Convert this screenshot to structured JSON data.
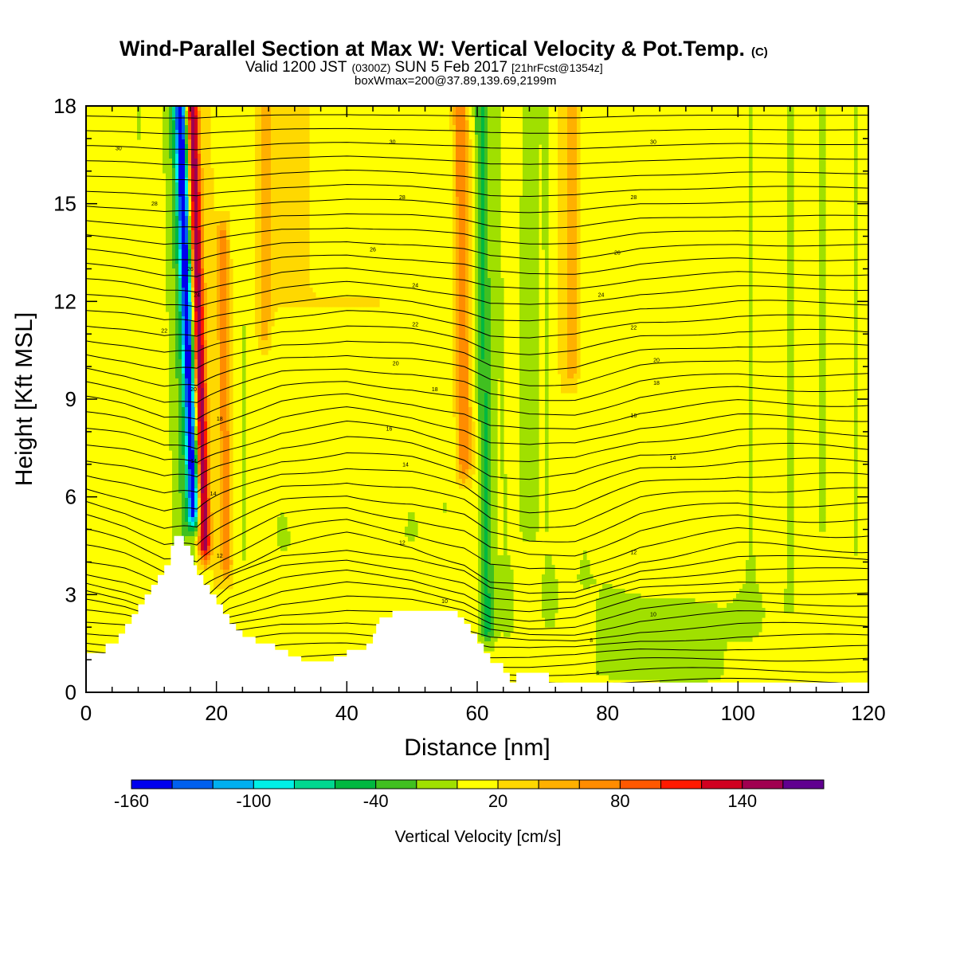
{
  "title": {
    "main": "Wind-Parallel Section at Max W: Vertical Velocity & Pot.Temp.",
    "main_suffix": "(C)",
    "valid_a": "Valid 1200 JST",
    "valid_b": "(0300Z)",
    "valid_c": "SUN 5 Feb 2017",
    "valid_d": "[21hrFcst@1354z]",
    "box": "boxWmax=200@37.89,139.69,2199m"
  },
  "colors": {
    "background": "#ffffff",
    "terrain": "#ffffff",
    "contour": "#000000",
    "palette": [
      "#0000ee",
      "#0060ee",
      "#00b0f0",
      "#00f0e6",
      "#00d890",
      "#00b840",
      "#40c020",
      "#a0e000",
      "#ffff00",
      "#ffd800",
      "#ffb000",
      "#ff8c00",
      "#ff5800",
      "#ff1a00",
      "#d00020",
      "#a00050",
      "#600090"
    ]
  },
  "chart_data": {
    "type": "heatmap",
    "xlabel": "Distance [nm]",
    "ylabel": "Height [Kft MSL]",
    "xlim": [
      0,
      120
    ],
    "ylim": [
      0,
      18
    ],
    "xticks": [
      0,
      20,
      40,
      60,
      80,
      100,
      120
    ],
    "yticks": [
      0,
      3,
      6,
      9,
      12,
      15,
      18
    ],
    "background_w": 20,
    "colorbar": {
      "title": "Vertical Velocity [cm/s]",
      "min": -160,
      "max": 180,
      "step": 20,
      "tick_labels": [
        -160,
        -100,
        -40,
        20,
        80,
        140
      ]
    },
    "w_features": [
      {
        "x": 16.5,
        "y_bottom": 5.5,
        "y_top": 18,
        "tilt": -3.0,
        "amp": -160,
        "width": 0.9
      },
      {
        "x": 18.2,
        "y_bottom": 4.5,
        "y_top": 18,
        "tilt": -2.5,
        "amp": 140,
        "width": 0.9
      },
      {
        "x": 15.0,
        "y_bottom": 4.0,
        "y_top": 18,
        "tilt": -2.0,
        "amp": -40,
        "width": 2.0
      },
      {
        "x": 21.5,
        "y_bottom": 4.0,
        "y_top": 14,
        "tilt": -1.0,
        "amp": 60,
        "width": 0.8
      },
      {
        "x": 24.0,
        "y_bottom": 4.0,
        "y_top": 18,
        "tilt": 0.0,
        "amp": -20,
        "width": 1.5
      },
      {
        "x": 27.5,
        "y_bottom": 11.0,
        "y_top": 18,
        "tilt": 0.0,
        "amp": 40,
        "width": 1.0
      },
      {
        "x": 8.0,
        "y_bottom": 2.0,
        "y_top": 18,
        "tilt": 0.0,
        "amp": -20,
        "width": 2.0
      },
      {
        "x": 30.0,
        "y_bottom": 4.5,
        "y_top": 11.0,
        "tilt": 0.0,
        "amp": -20,
        "width": 3.0
      },
      {
        "x": 42.0,
        "y_bottom": 3.0,
        "y_top": 4.8,
        "tilt": 0.0,
        "amp": -20,
        "width": 8.0
      },
      {
        "x": 46.0,
        "y_bottom": 13.0,
        "y_top": 18,
        "tilt": 0.0,
        "amp": -20,
        "width": 2.0
      },
      {
        "x": 50.0,
        "y_bottom": 5.0,
        "y_top": 9.0,
        "tilt": 0.0,
        "amp": -20,
        "width": 1.5
      },
      {
        "x": 55.0,
        "y_bottom": 5.5,
        "y_top": 18,
        "tilt": -1.0,
        "amp": -20,
        "width": 1.6
      },
      {
        "x": 58.0,
        "y_bottom": 7.0,
        "y_top": 18,
        "tilt": -1.0,
        "amp": 60,
        "width": 1.0
      },
      {
        "x": 61.5,
        "y_bottom": 1.8,
        "y_top": 18,
        "tilt": -1.0,
        "amp": -60,
        "width": 1.2
      },
      {
        "x": 64.5,
        "y_bottom": 2.0,
        "y_top": 18,
        "tilt": -1.5,
        "amp": -20,
        "width": 1.8
      },
      {
        "x": 68.0,
        "y_bottom": 5.0,
        "y_top": 18,
        "tilt": 0.0,
        "amp": -40,
        "width": 1.5
      },
      {
        "x": 71.0,
        "y_bottom": 2.5,
        "y_top": 18,
        "tilt": -0.5,
        "amp": -20,
        "width": 1.0
      },
      {
        "x": 74.5,
        "y_bottom": 10.0,
        "y_top": 18,
        "tilt": 0.0,
        "amp": 40,
        "width": 1.0
      },
      {
        "x": 76.5,
        "y_bottom": 4.0,
        "y_top": 18,
        "tilt": 0.0,
        "amp": -20,
        "width": 1.0
      },
      {
        "x": 80.0,
        "y_bottom": 0.5,
        "y_top": 3.5,
        "tilt": 0.0,
        "amp": -20,
        "width": 14.0
      },
      {
        "x": 94.0,
        "y_bottom": 0.5,
        "y_top": 2.5,
        "tilt": 0.0,
        "amp": -20,
        "width": 8.0
      },
      {
        "x": 84.0,
        "y_bottom": 6.0,
        "y_top": 18,
        "tilt": 0.0,
        "amp": -20,
        "width": 1.0
      },
      {
        "x": 94.0,
        "y_bottom": 10.0,
        "y_top": 18,
        "tilt": 0.0,
        "amp": -20,
        "width": 2.0
      },
      {
        "x": 102.0,
        "y_bottom": 2.0,
        "y_top": 18,
        "tilt": 0.0,
        "amp": -20,
        "width": 3.0
      },
      {
        "x": 108.0,
        "y_bottom": 2.5,
        "y_top": 18,
        "tilt": 0.0,
        "amp": -20,
        "width": 2.5
      },
      {
        "x": 113.0,
        "y_bottom": 5.0,
        "y_top": 18,
        "tilt": 0.0,
        "amp": -20,
        "width": 2.5
      },
      {
        "x": 118.0,
        "y_bottom": 0.5,
        "y_top": 18,
        "tilt": 0.0,
        "amp": -20,
        "width": 1.5
      }
    ],
    "terrain": [
      [
        0,
        1.2
      ],
      [
        3,
        1.2
      ],
      [
        3,
        1.5
      ],
      [
        5,
        1.5
      ],
      [
        5,
        1.8
      ],
      [
        6,
        1.8
      ],
      [
        6,
        2.1
      ],
      [
        7,
        2.1
      ],
      [
        7,
        2.4
      ],
      [
        8,
        2.4
      ],
      [
        8,
        2.7
      ],
      [
        9,
        2.7
      ],
      [
        9,
        3.0
      ],
      [
        10,
        3.0
      ],
      [
        10,
        3.3
      ],
      [
        11,
        3.3
      ],
      [
        11,
        3.6
      ],
      [
        12,
        3.6
      ],
      [
        12,
        3.9
      ],
      [
        13,
        3.9
      ],
      [
        13,
        4.5
      ],
      [
        13.5,
        4.5
      ],
      [
        13.5,
        4.8
      ],
      [
        15,
        4.8
      ],
      [
        15,
        4.5
      ],
      [
        16,
        4.5
      ],
      [
        16,
        4.2
      ],
      [
        16.5,
        4.2
      ],
      [
        16.5,
        3.9
      ],
      [
        17,
        3.9
      ],
      [
        17,
        3.6
      ],
      [
        18,
        3.6
      ],
      [
        18,
        3.3
      ],
      [
        19,
        3.3
      ],
      [
        19,
        3.0
      ],
      [
        20,
        3.0
      ],
      [
        20,
        2.7
      ],
      [
        21,
        2.7
      ],
      [
        21,
        2.4
      ],
      [
        22,
        2.4
      ],
      [
        22,
        2.1
      ],
      [
        23,
        2.1
      ],
      [
        23,
        1.9
      ],
      [
        24,
        1.9
      ],
      [
        24,
        1.7
      ],
      [
        26,
        1.7
      ],
      [
        26,
        1.5
      ],
      [
        29,
        1.5
      ],
      [
        29,
        1.3
      ],
      [
        31,
        1.3
      ],
      [
        31,
        1.1
      ],
      [
        33,
        1.1
      ],
      [
        33,
        0.95
      ],
      [
        36,
        0.95
      ],
      [
        36,
        0.95
      ],
      [
        38,
        0.95
      ],
      [
        38,
        1.1
      ],
      [
        40,
        1.1
      ],
      [
        40,
        1.3
      ],
      [
        43,
        1.3
      ],
      [
        43,
        1.5
      ],
      [
        44,
        1.5
      ],
      [
        44,
        1.8
      ],
      [
        44.5,
        1.8
      ],
      [
        44.5,
        2.1
      ],
      [
        45,
        2.1
      ],
      [
        45,
        2.3
      ],
      [
        47,
        2.3
      ],
      [
        47,
        2.5
      ],
      [
        57,
        2.5
      ],
      [
        57,
        2.3
      ],
      [
        58,
        2.3
      ],
      [
        58,
        2.1
      ],
      [
        59,
        2.1
      ],
      [
        59,
        1.8
      ],
      [
        60,
        1.8
      ],
      [
        60,
        1.5
      ],
      [
        61,
        1.5
      ],
      [
        61,
        1.2
      ],
      [
        62,
        1.2
      ],
      [
        62,
        0.9
      ],
      [
        64,
        0.9
      ],
      [
        64,
        0.6
      ],
      [
        65,
        0.6
      ],
      [
        65,
        0.3
      ],
      [
        66,
        0.3
      ],
      [
        66,
        0.6
      ],
      [
        71,
        0.6
      ],
      [
        71,
        0.3
      ],
      [
        120,
        0.3
      ],
      [
        120,
        0
      ],
      [
        0,
        0
      ]
    ],
    "theta_base": [
      [
        0,
        4.0
      ],
      [
        6,
        3.7
      ],
      [
        12,
        3.2
      ],
      [
        17,
        2.8
      ],
      [
        22,
        3.8
      ],
      [
        30,
        4.5
      ],
      [
        40,
        4.8
      ],
      [
        50,
        4.5
      ],
      [
        58,
        4.0
      ],
      [
        62,
        3.4
      ],
      [
        68,
        3.2
      ],
      [
        75,
        3.3
      ],
      [
        85,
        4.1
      ],
      [
        100,
        4.5
      ],
      [
        120,
        4.4
      ]
    ],
    "theta_levels": 45,
    "contour_labels": [
      {
        "text": "30",
        "x": 5,
        "y": 16.7
      },
      {
        "text": "30",
        "x": 47,
        "y": 16.9
      },
      {
        "text": "30",
        "x": 87,
        "y": 16.9
      },
      {
        "text": "28",
        "x": 10.5,
        "y": 15.0
      },
      {
        "text": "28",
        "x": 48.5,
        "y": 15.2
      },
      {
        "text": "28",
        "x": 84,
        "y": 15.2
      },
      {
        "text": "26",
        "x": 44,
        "y": 13.6
      },
      {
        "text": "26",
        "x": 81.5,
        "y": 13.5
      },
      {
        "text": "26",
        "x": 16,
        "y": 13.0
      },
      {
        "text": "24",
        "x": 50.5,
        "y": 12.5
      },
      {
        "text": "24",
        "x": 79,
        "y": 12.2
      },
      {
        "text": "24",
        "x": 17,
        "y": 12.2
      },
      {
        "text": "22",
        "x": 12,
        "y": 11.1
      },
      {
        "text": "22",
        "x": 50.5,
        "y": 11.3
      },
      {
        "text": "22",
        "x": 84,
        "y": 11.2
      },
      {
        "text": "20",
        "x": 47.5,
        "y": 10.1
      },
      {
        "text": "20",
        "x": 87.5,
        "y": 10.2
      },
      {
        "text": "20",
        "x": 16.5,
        "y": 9.3
      },
      {
        "text": "18",
        "x": 53.5,
        "y": 9.3
      },
      {
        "text": "18",
        "x": 87.5,
        "y": 9.5
      },
      {
        "text": "18",
        "x": 20.5,
        "y": 8.4
      },
      {
        "text": "16",
        "x": 46.5,
        "y": 8.1
      },
      {
        "text": "16",
        "x": 84,
        "y": 8.5
      },
      {
        "text": "14",
        "x": 49,
        "y": 7.0
      },
      {
        "text": "14",
        "x": 90,
        "y": 7.2
      },
      {
        "text": "14",
        "x": 16.5,
        "y": 7.1
      },
      {
        "text": "14",
        "x": 19.5,
        "y": 6.1
      },
      {
        "text": "12",
        "x": 48.5,
        "y": 4.6
      },
      {
        "text": "12",
        "x": 84,
        "y": 4.3
      },
      {
        "text": "12",
        "x": 20.5,
        "y": 4.2
      },
      {
        "text": "10",
        "x": 55,
        "y": 2.8
      },
      {
        "text": "10",
        "x": 87,
        "y": 2.4
      },
      {
        "text": "8",
        "x": 77.5,
        "y": 1.6
      },
      {
        "text": "6",
        "x": 78.5,
        "y": 0.6
      }
    ]
  }
}
